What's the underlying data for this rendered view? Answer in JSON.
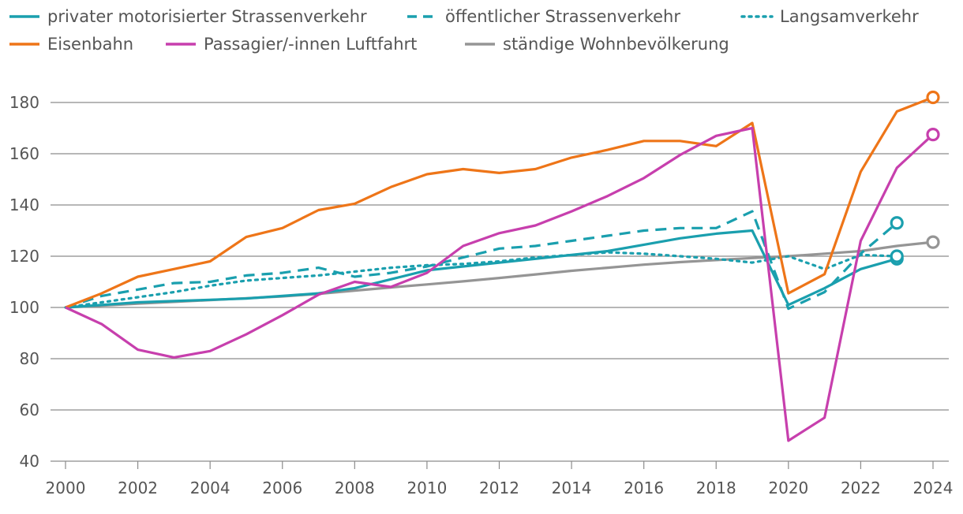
{
  "chart_data": {
    "type": "line",
    "title": "",
    "xlabel": "",
    "ylabel": "",
    "xlim": [
      2000,
      2024
    ],
    "ylim": [
      40,
      180
    ],
    "x_ticks": [
      "2000",
      "2002",
      "2004",
      "2006",
      "2008",
      "2010",
      "2012",
      "2014",
      "2016",
      "2018",
      "2020",
      "2022",
      "2024"
    ],
    "y_ticks": [
      "40",
      "60",
      "80",
      "100",
      "120",
      "140",
      "160",
      "180"
    ],
    "grid": "horizontal",
    "legend_position": "top",
    "series": [
      {
        "name": "privater motorisierter Strassenverkehr",
        "color": "#1a9fae",
        "style": "solid",
        "x": [
          2000,
          2001,
          2002,
          2003,
          2004,
          2005,
          2006,
          2007,
          2008,
          2009,
          2010,
          2011,
          2012,
          2013,
          2014,
          2015,
          2016,
          2017,
          2018,
          2019,
          2020,
          2021,
          2022,
          2023
        ],
        "values": [
          100,
          101,
          102,
          102.5,
          103,
          103.5,
          104.5,
          105.5,
          107.5,
          111,
          114.5,
          116,
          117.5,
          119,
          120.5,
          122,
          124.5,
          127,
          128.8,
          130,
          101,
          107.5,
          115,
          119
        ],
        "end_marker": true
      },
      {
        "name": "öffentlicher Strassenverkehr",
        "color": "#1a9fae",
        "style": "dashed",
        "x": [
          2000,
          2001,
          2002,
          2003,
          2004,
          2005,
          2006,
          2007,
          2008,
          2009,
          2010,
          2011,
          2012,
          2013,
          2014,
          2015,
          2016,
          2017,
          2018,
          2019,
          2020,
          2021,
          2022,
          2023
        ],
        "values": [
          100,
          104.5,
          107,
          109.5,
          110,
          112.5,
          113.5,
          115.5,
          112,
          113.5,
          116,
          119.5,
          123,
          124,
          126,
          128,
          130,
          131,
          131,
          137.5,
          99.5,
          106,
          121,
          133
        ],
        "end_marker": true
      },
      {
        "name": "Langsamverkehr",
        "color": "#1a9fae",
        "style": "dotted",
        "x": [
          2000,
          2001,
          2002,
          2003,
          2004,
          2005,
          2006,
          2007,
          2008,
          2009,
          2010,
          2011,
          2012,
          2013,
          2014,
          2015,
          2016,
          2017,
          2018,
          2019,
          2020,
          2021,
          2022,
          2023
        ],
        "values": [
          100,
          102,
          104,
          106,
          108.5,
          110.5,
          111.5,
          112.5,
          114,
          115.5,
          116.5,
          117,
          118,
          119.5,
          120.5,
          121.5,
          121,
          120,
          119,
          117.5,
          120,
          115,
          120.5,
          120
        ],
        "end_marker": true
      },
      {
        "name": "Eisenbahn",
        "color": "#ee7518",
        "style": "solid",
        "x": [
          2000,
          2001,
          2002,
          2003,
          2004,
          2005,
          2006,
          2007,
          2008,
          2009,
          2010,
          2011,
          2012,
          2013,
          2014,
          2015,
          2016,
          2017,
          2018,
          2019,
          2020,
          2021,
          2022,
          2023,
          2024
        ],
        "values": [
          100,
          105.5,
          112,
          115,
          118,
          127.5,
          131,
          138,
          140.5,
          147,
          152,
          154,
          152.5,
          154,
          158.5,
          161.5,
          165,
          165,
          163,
          172,
          105.5,
          113,
          153,
          176.5,
          182
        ],
        "end_marker": true
      },
      {
        "name": "Passagier/-innen Luftfahrt",
        "color": "#c73fad",
        "style": "solid",
        "x": [
          2000,
          2001,
          2002,
          2003,
          2004,
          2005,
          2006,
          2007,
          2008,
          2009,
          2010,
          2011,
          2012,
          2013,
          2014,
          2015,
          2016,
          2017,
          2018,
          2019,
          2020,
          2021,
          2022,
          2023,
          2024
        ],
        "values": [
          100,
          93.5,
          83.5,
          80.5,
          83,
          89.5,
          97,
          105,
          110,
          108,
          113.5,
          124,
          129,
          132,
          137.5,
          143.5,
          150.5,
          159.5,
          167,
          170,
          48,
          57,
          126,
          154.5,
          167.5
        ],
        "end_marker": true
      },
      {
        "name": "ständige Wohnbevölkerung",
        "color": "#959595",
        "style": "solid",
        "x": [
          2000,
          2001,
          2002,
          2003,
          2004,
          2005,
          2006,
          2007,
          2008,
          2009,
          2010,
          2011,
          2012,
          2013,
          2014,
          2015,
          2016,
          2017,
          2018,
          2019,
          2020,
          2021,
          2022,
          2023,
          2024
        ],
        "values": [
          100,
          100.7,
          101.5,
          102.2,
          102.9,
          103.6,
          104.3,
          105.3,
          106.6,
          107.8,
          109,
          110.2,
          111.5,
          112.9,
          114.3,
          115.5,
          116.7,
          117.7,
          118.5,
          119.3,
          120,
          121,
          122,
          124,
          125.5
        ],
        "end_marker": true
      }
    ]
  }
}
